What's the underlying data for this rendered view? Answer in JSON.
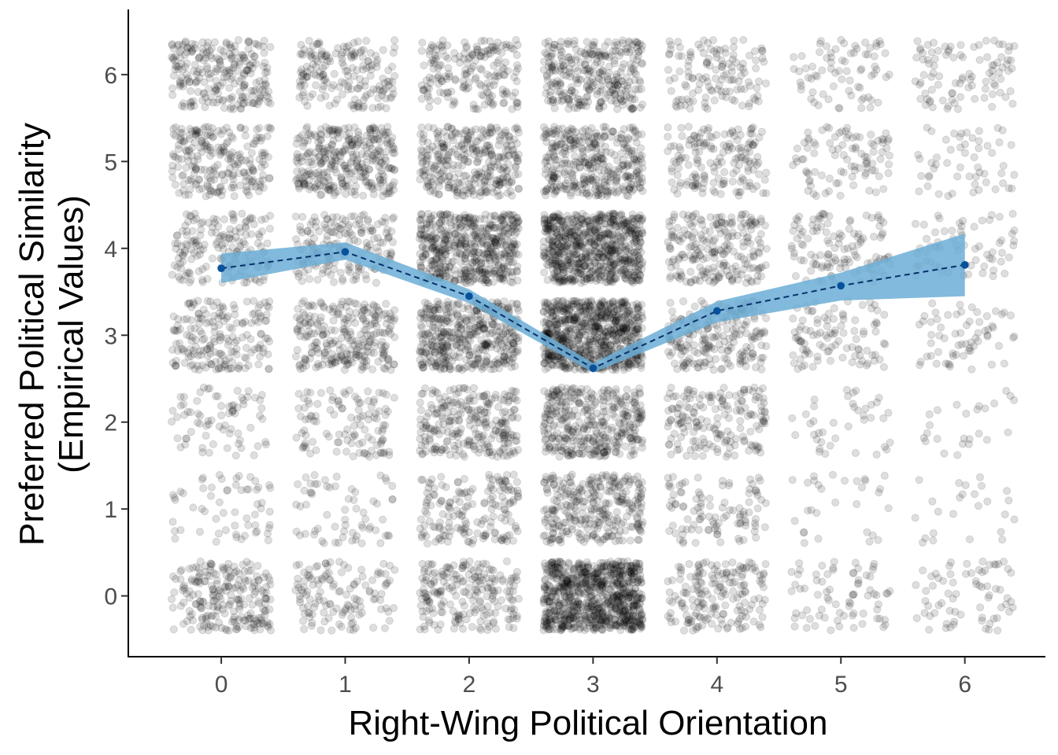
{
  "chart_data": {
    "type": "scatter",
    "title": "",
    "xlabel": "Right-Wing Political Orientation",
    "ylabel_lines": [
      "Preferred Political Similarity",
      "(Empirical Values)"
    ],
    "x_ticks": [
      "0",
      "1",
      "2",
      "3",
      "4",
      "5",
      "6"
    ],
    "y_ticks": [
      "0",
      "1",
      "2",
      "3",
      "4",
      "5",
      "6"
    ],
    "xlim": [
      -0.75,
      6.65
    ],
    "ylim": [
      -0.7,
      6.75
    ],
    "grid": false,
    "legend": "none",
    "jitter": {
      "x_half_width": 0.4,
      "y_half_width": 0.4
    },
    "point_color": "#000000",
    "point_opacity": 0.13,
    "mean_series": {
      "x": [
        0,
        1,
        2,
        3,
        4,
        5,
        6
      ],
      "y": [
        3.77,
        3.96,
        3.45,
        2.62,
        3.28,
        3.57,
        3.81
      ],
      "ci_lower": [
        3.6,
        3.87,
        3.37,
        2.57,
        3.15,
        3.4,
        3.45
      ],
      "ci_upper": [
        3.94,
        4.07,
        3.53,
        2.68,
        3.39,
        3.72,
        4.17
      ],
      "line_color": "#08306b",
      "point_color": "#08519c",
      "ribbon_color": "#6baed6",
      "line_style": "dashed"
    },
    "point_counts": {
      "y_levels": [
        0,
        1,
        2,
        3,
        4,
        5,
        6
      ],
      "by_x": [
        [
          230,
          60,
          75,
          190,
          175,
          230,
          245
        ],
        [
          130,
          65,
          115,
          260,
          180,
          330,
          180
        ],
        [
          210,
          170,
          260,
          440,
          520,
          320,
          190
        ],
        [
          820,
          300,
          370,
          780,
          700,
          370,
          310
        ],
        [
          180,
          105,
          175,
          215,
          225,
          165,
          130
        ],
        [
          75,
          30,
          40,
          100,
          120,
          95,
          75
        ],
        [
          70,
          25,
          25,
          65,
          65,
          55,
          95
        ]
      ]
    }
  }
}
